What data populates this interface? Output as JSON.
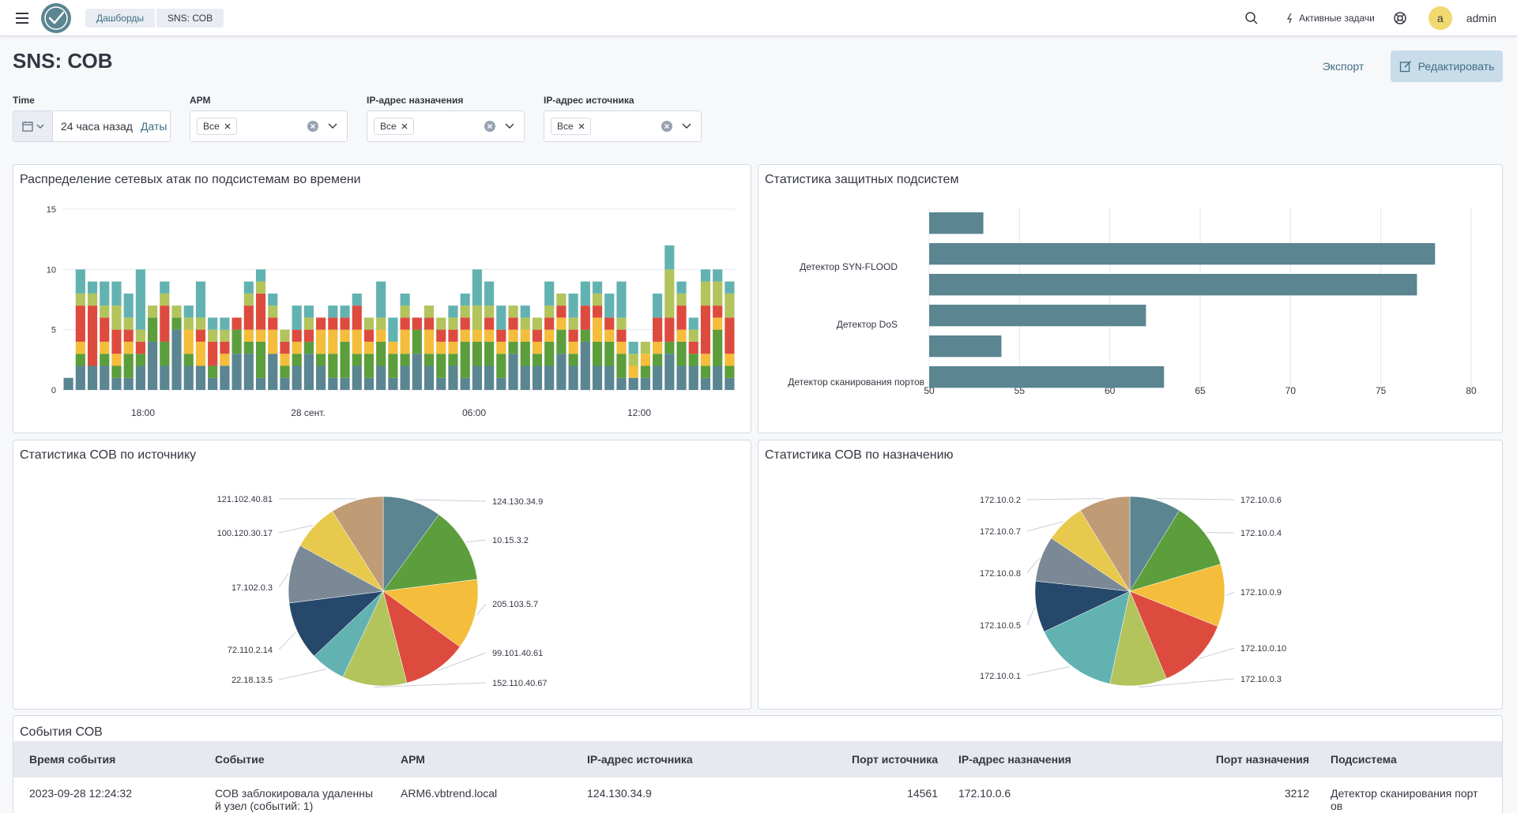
{
  "header": {
    "breadcrumbs": [
      "Дашборды",
      "SNS: СОВ"
    ],
    "active_tasks": "Активные задачи",
    "avatar_letter": "a",
    "username": "admin"
  },
  "page": {
    "title": "SNS: СОВ",
    "export_label": "Экспорт",
    "edit_label": "Редактировать"
  },
  "filters": {
    "time": {
      "label": "Time",
      "value": "24 часа назад",
      "dates_label": "Даты"
    },
    "arm": {
      "label": "АРМ",
      "value": "Все"
    },
    "dst_ip": {
      "label": "IP-адрес назначения",
      "value": "Все"
    },
    "src_ip": {
      "label": "IP-адрес источника",
      "value": "Все"
    }
  },
  "panels": {
    "attacks_over_time": "Распределение сетевых атак по подсистемам во времени",
    "subsystem_stats": "Статистика защитных подсистем",
    "by_source": "Статистика СОВ по источнику",
    "by_destination": "Статистика СОВ по назначению",
    "events": "События СОВ"
  },
  "colors": {
    "teal": "#5a8591",
    "green": "#5b9e3b",
    "yellow": "#f4bd3b",
    "red": "#dd4b3f",
    "lime": "#b2c45b",
    "cyan": "#63b2b2"
  },
  "chart_data": [
    {
      "type": "bar",
      "stacked": true,
      "title": "Распределение сетевых атак по подсистемам во времени",
      "x_tick_labels": [
        "18:00",
        "28 сент.",
        "06:00",
        "12:00"
      ],
      "y_ticks": [
        0,
        5,
        10,
        15
      ],
      "ylim": [
        0,
        15
      ],
      "grid": true,
      "bar_count": 56,
      "stack_order": [
        "teal",
        "green",
        "yellow",
        "red",
        "lime",
        "cyan"
      ],
      "stacks": [
        [
          1,
          0,
          0,
          0,
          0,
          0
        ],
        [
          2,
          1,
          1,
          3,
          1,
          2
        ],
        [
          2,
          0,
          0,
          5,
          1,
          1
        ],
        [
          2,
          1,
          1,
          2,
          1,
          2
        ],
        [
          1,
          1,
          1,
          2,
          2,
          2
        ],
        [
          1,
          2,
          1,
          1,
          1,
          2
        ],
        [
          2,
          1,
          0,
          1,
          1,
          5
        ],
        [
          4,
          2,
          0,
          0,
          1,
          0
        ],
        [
          2,
          2,
          0,
          3,
          1,
          1
        ],
        [
          5,
          1,
          0,
          0,
          1,
          0
        ],
        [
          2,
          1,
          2,
          0,
          1,
          1
        ],
        [
          2,
          0,
          2,
          1,
          1,
          3
        ],
        [
          1,
          1,
          0,
          2,
          1,
          1
        ],
        [
          2,
          0,
          1,
          1,
          1,
          1
        ],
        [
          3,
          2,
          0,
          1,
          0,
          0
        ],
        [
          3,
          1,
          1,
          2,
          1,
          1
        ],
        [
          1,
          3,
          1,
          3,
          1,
          1
        ],
        [
          3,
          0,
          2,
          1,
          1,
          1
        ],
        [
          1,
          1,
          1,
          1,
          1,
          0
        ],
        [
          2,
          1,
          1,
          1,
          0,
          2
        ],
        [
          3,
          1,
          0,
          1,
          1,
          1
        ],
        [
          2,
          1,
          2,
          1,
          0,
          0
        ],
        [
          1,
          2,
          2,
          1,
          0,
          1
        ],
        [
          1,
          3,
          1,
          1,
          0,
          1
        ],
        [
          2,
          1,
          2,
          2,
          0,
          1
        ],
        [
          1,
          2,
          1,
          1,
          1,
          0
        ],
        [
          2,
          2,
          1,
          0,
          1,
          3
        ],
        [
          1,
          2,
          1,
          0,
          0,
          2
        ],
        [
          2,
          1,
          2,
          1,
          1,
          1
        ],
        [
          3,
          2,
          0,
          1,
          0,
          0
        ],
        [
          2,
          1,
          2,
          1,
          1,
          0
        ],
        [
          1,
          2,
          1,
          1,
          1,
          0
        ],
        [
          2,
          1,
          1,
          1,
          1,
          1
        ],
        [
          1,
          3,
          1,
          1,
          1,
          1
        ],
        [
          2,
          2,
          1,
          0,
          2,
          3
        ],
        [
          2,
          2,
          1,
          1,
          1,
          2
        ],
        [
          1,
          2,
          1,
          1,
          0,
          2
        ],
        [
          3,
          1,
          1,
          1,
          1,
          0
        ],
        [
          2,
          2,
          1,
          0,
          1,
          1
        ],
        [
          2,
          1,
          1,
          1,
          1,
          0
        ],
        [
          2,
          2,
          1,
          1,
          1,
          2
        ],
        [
          3,
          2,
          1,
          1,
          1,
          0
        ],
        [
          2,
          1,
          1,
          1,
          1,
          2
        ],
        [
          4,
          1,
          0,
          2,
          0,
          2
        ],
        [
          2,
          2,
          2,
          1,
          1,
          1
        ],
        [
          2,
          2,
          1,
          1,
          0,
          2
        ],
        [
          1,
          2,
          1,
          1,
          1,
          3
        ],
        [
          1,
          0,
          1,
          0,
          1,
          1
        ],
        [
          1,
          1,
          1,
          0,
          1,
          0
        ],
        [
          2,
          1,
          1,
          2,
          0,
          2
        ],
        [
          3,
          1,
          0,
          2,
          4,
          2
        ],
        [
          2,
          2,
          1,
          2,
          1,
          1
        ],
        [
          2,
          1,
          0,
          1,
          1,
          1
        ],
        [
          1,
          1,
          1,
          4,
          2,
          1
        ],
        [
          2,
          3,
          1,
          1,
          2,
          1
        ],
        [
          1,
          1,
          1,
          3,
          2,
          1
        ]
      ]
    },
    {
      "type": "bar",
      "orientation": "horizontal",
      "title": "Статистика защитных подсистем",
      "category_labels": [
        "Детектор SYN-FLOOD",
        "Детектор DoS",
        "Детектор сканирования портов"
      ],
      "values": [
        53,
        78,
        77,
        62,
        54,
        63
      ],
      "x_ticks": [
        50,
        55,
        60,
        65,
        70,
        75,
        80
      ],
      "xlim": [
        50,
        80
      ],
      "grid": true
    },
    {
      "type": "pie",
      "title": "Статистика СОВ по источнику",
      "labels": [
        "124.130.34.9",
        "10.15.3.2",
        "205.103.5.7",
        "99.101.40.61",
        "152.110.40.67",
        "22.18.13.5",
        "72.110.2.14",
        "17.102.0.3",
        "100.120.30.17",
        "121.102.40.81"
      ],
      "values": [
        10,
        13,
        12,
        11,
        11,
        6,
        10,
        10,
        8,
        9
      ],
      "colors": [
        "#5a8591",
        "#5b9e3b",
        "#f4bd3b",
        "#dd4b3f",
        "#b2c45b",
        "#63b2b2",
        "#26486b",
        "#7b8996",
        "#e7c94d",
        "#bf9b76"
      ]
    },
    {
      "type": "pie",
      "title": "Статистика СОВ по назначению",
      "labels": [
        "172.10.0.6",
        "172.10.0.4",
        "172.10.0.9",
        "172.10.0.10",
        "172.10.0.3",
        "172.10.0.1",
        "172.10.0.5",
        "172.10.0.8",
        "172.10.0.7",
        "172.10.0.2"
      ],
      "values": [
        9,
        12,
        11,
        13,
        10,
        15,
        9,
        8,
        7,
        9
      ],
      "colors": [
        "#5a8591",
        "#5b9e3b",
        "#f4bd3b",
        "#dd4b3f",
        "#b2c45b",
        "#63b2b2",
        "#26486b",
        "#7b8996",
        "#e7c94d",
        "#bf9b76"
      ]
    }
  ],
  "table": {
    "columns": [
      "Время события",
      "Событие",
      "АРМ",
      "IP-адрес источника",
      "Порт источника",
      "IP-адрес назначения",
      "Порт назначения",
      "Подсистема"
    ],
    "rows": [
      {
        "time": "2023-09-28 12:24:32",
        "event_line1": "СОВ заблокировала удаленны",
        "event_line2": "й узел (событий: 1)",
        "arm": "ARM6.vbtrend.local",
        "src_ip": "124.130.34.9",
        "src_port": "14561",
        "dst_ip": "172.10.0.6",
        "dst_port": "3212",
        "subsystem_line1": "Детектор сканирования порт",
        "subsystem_line2": "ов"
      }
    ]
  }
}
